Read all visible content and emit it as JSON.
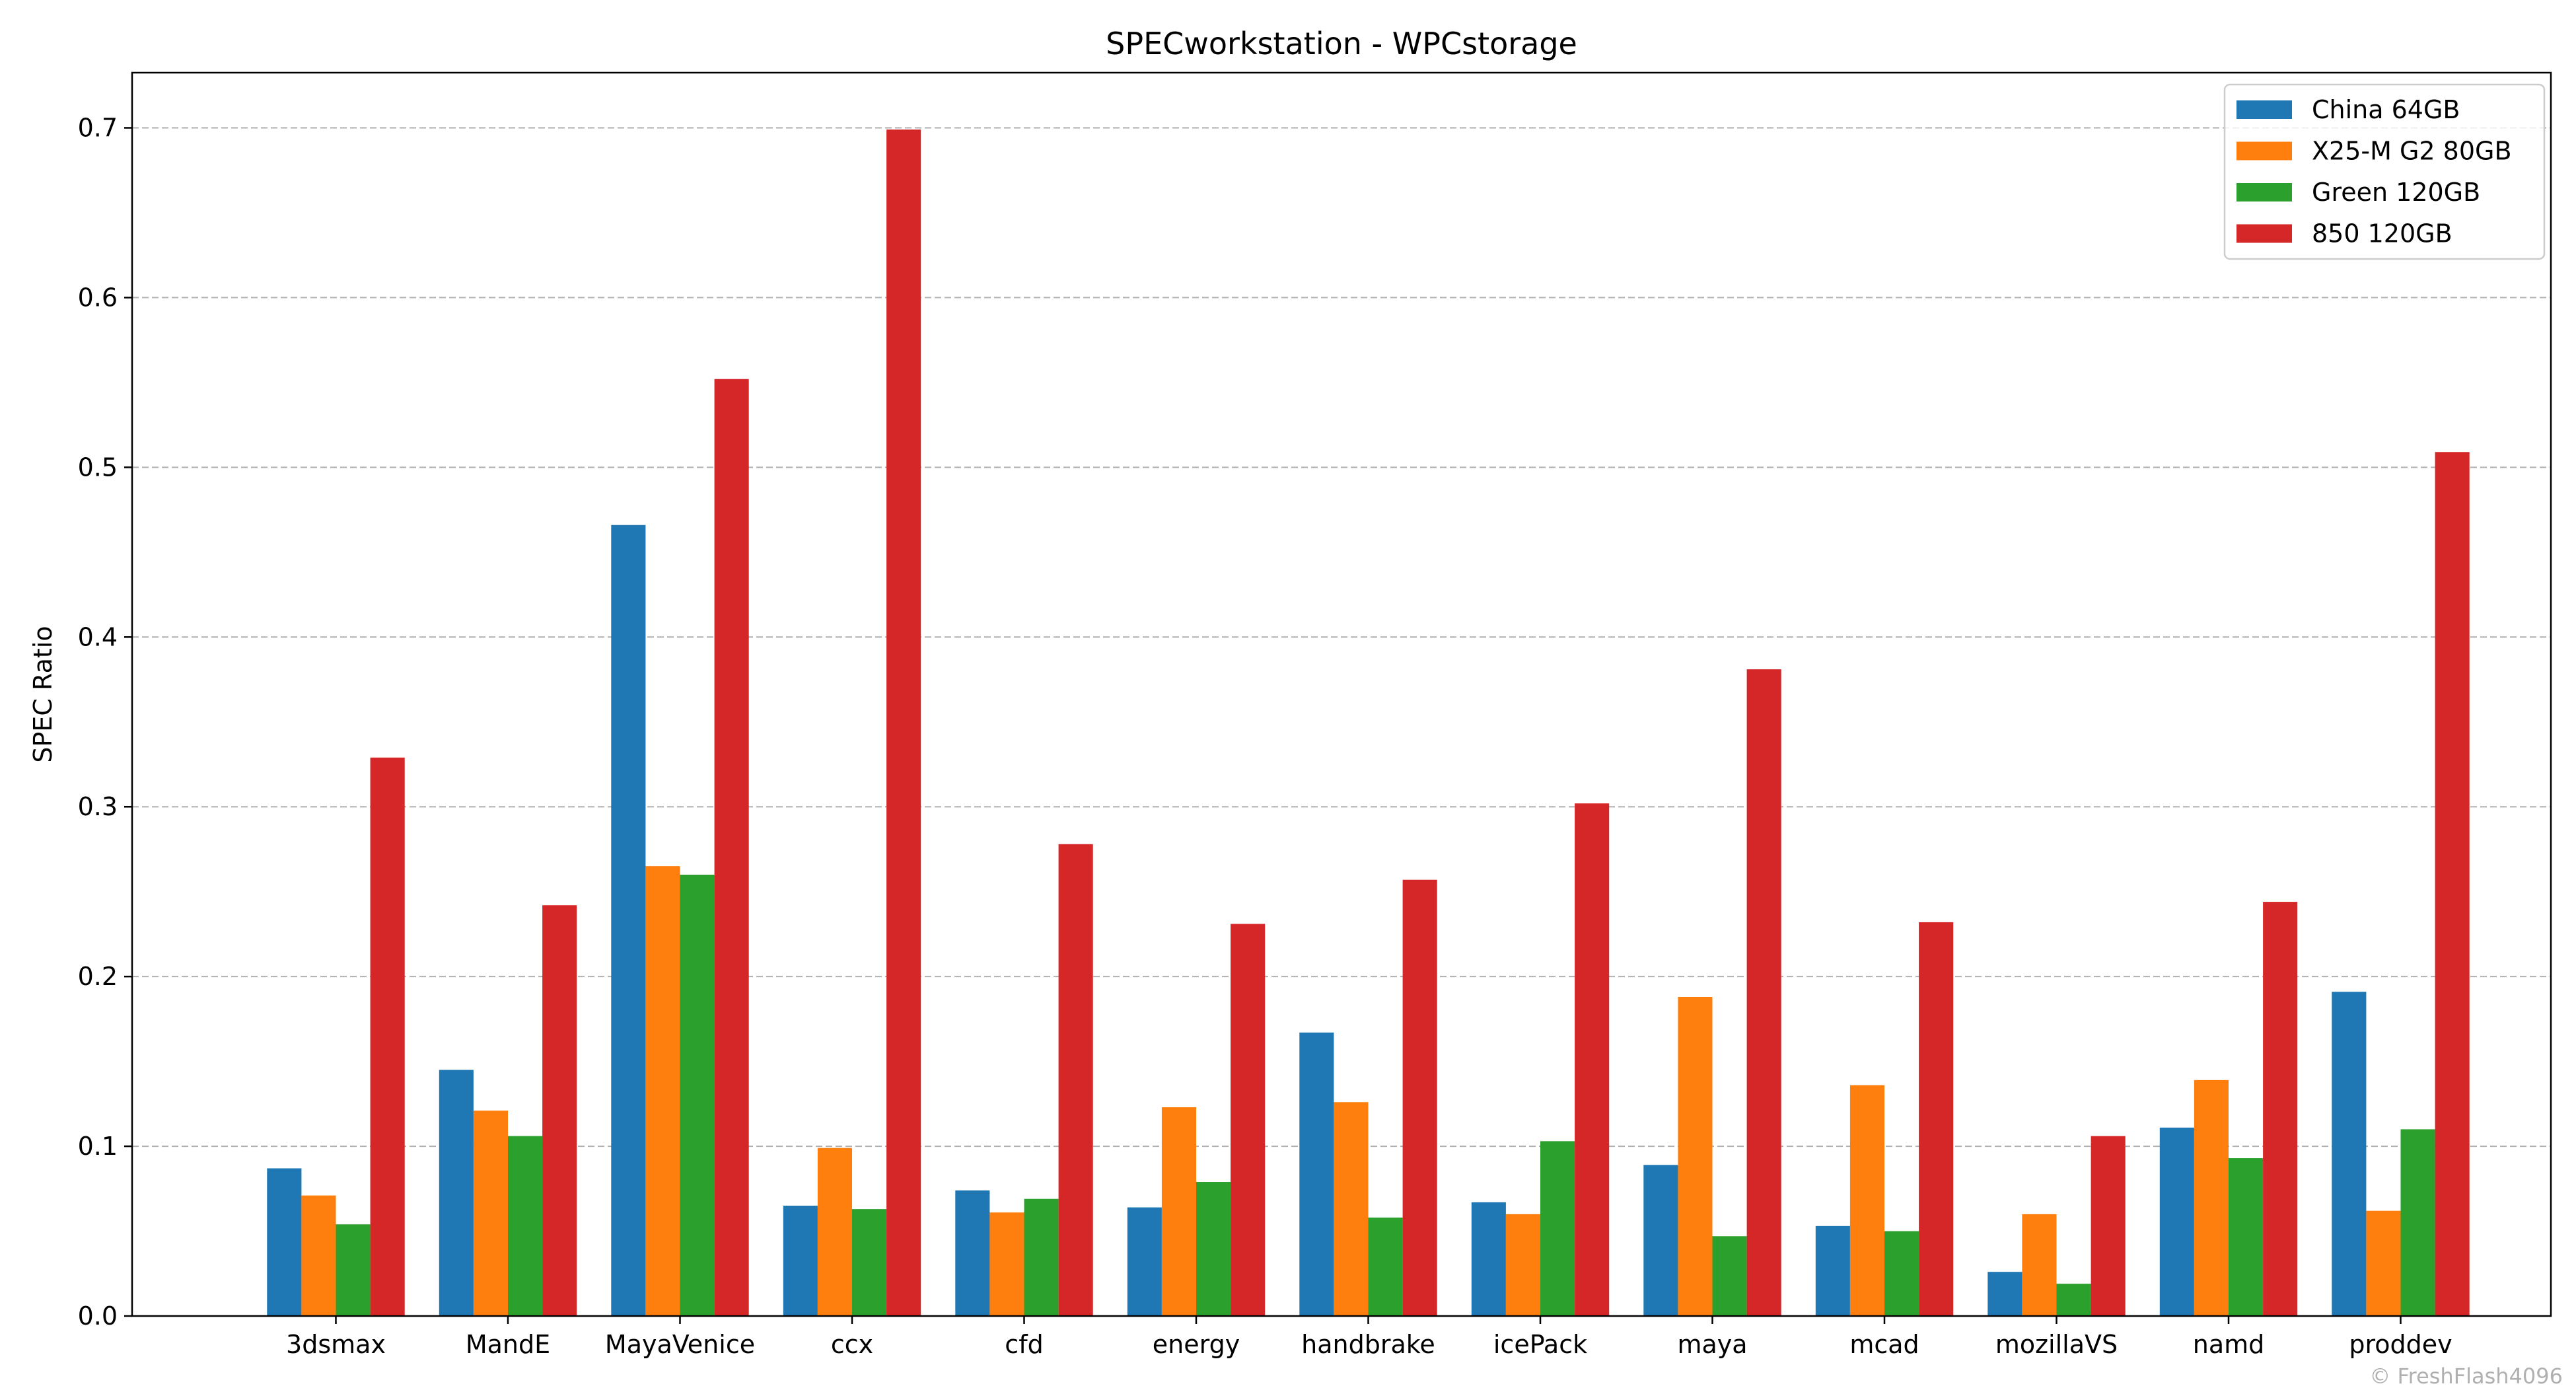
{
  "chart_data": {
    "type": "bar",
    "title": "SPECworkstation - WPCstorage",
    "xlabel": "",
    "ylabel": "SPEC Ratio",
    "ylim": [
      0,
      0.7325
    ],
    "yticks": [
      0.0,
      0.1,
      0.2,
      0.3,
      0.4,
      0.5,
      0.6,
      0.7
    ],
    "ytick_labels": [
      "0.0",
      "0.1",
      "0.2",
      "0.3",
      "0.4",
      "0.5",
      "0.6",
      "0.7"
    ],
    "grid": "y-dashed",
    "legend_position": "top-right",
    "categories": [
      "3dsmax",
      "MandE",
      "MayaVenice",
      "ccx",
      "cfd",
      "energy",
      "handbrake",
      "icePack",
      "maya",
      "mcad",
      "mozillaVS",
      "namd",
      "proddev"
    ],
    "series": [
      {
        "name": "China 64GB",
        "color": "#1f77b4",
        "values": [
          0.087,
          0.145,
          0.466,
          0.065,
          0.074,
          0.064,
          0.167,
          0.067,
          0.089,
          0.053,
          0.026,
          0.111,
          0.191
        ]
      },
      {
        "name": "X25-M G2 80GB",
        "color": "#ff7f0e",
        "values": [
          0.071,
          0.121,
          0.265,
          0.099,
          0.061,
          0.123,
          0.126,
          0.06,
          0.188,
          0.136,
          0.06,
          0.139,
          0.062
        ]
      },
      {
        "name": "Green 120GB",
        "color": "#2ca02c",
        "values": [
          0.054,
          0.106,
          0.26,
          0.063,
          0.069,
          0.079,
          0.058,
          0.103,
          0.047,
          0.05,
          0.019,
          0.093,
          0.11
        ]
      },
      {
        "name": "850 120GB",
        "color": "#d62728",
        "values": [
          0.329,
          0.242,
          0.552,
          0.699,
          0.278,
          0.231,
          0.257,
          0.302,
          0.381,
          0.232,
          0.106,
          0.244,
          0.509
        ]
      }
    ]
  },
  "watermark": "© FreshFlash4096"
}
